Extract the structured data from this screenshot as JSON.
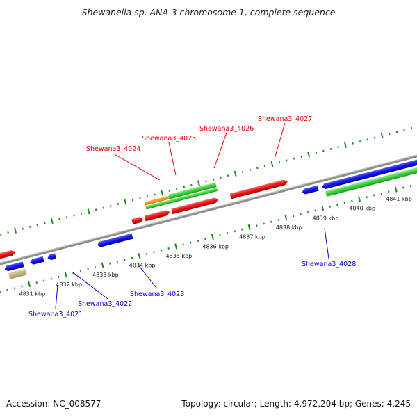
{
  "title": "Shewanella sp. ANA-3 chromosome 1, complete sequence",
  "footer": {
    "accession": "Accession: NC_008577",
    "summary": "Topology: circular; Length: 4,972,204 bp; Genes: 4,245"
  },
  "colors": {
    "backbone": "#8c8c8c",
    "tick": "#1f8a1f",
    "forward_label": "#dd0000",
    "reverse_label": "#0000cc"
  },
  "kbp_labels": [
    "4831 kbp",
    "4832 kbp",
    "4833 kbp",
    "4834 kbp",
    "4835 kbp",
    "4836 kbp",
    "4837 kbp",
    "4838 kbp",
    "4839 kbp",
    "4840 kbp",
    "4841 kbp"
  ],
  "gene_labels": {
    "forward": [
      "Shewana3_4024",
      "Shewana3_4025",
      "Shewana3_4026",
      "Shewana3_4027"
    ],
    "reverse": [
      "Shewana3_4021",
      "Shewana3_4022",
      "Shewana3_4023",
      "Shewana3_4028"
    ]
  }
}
